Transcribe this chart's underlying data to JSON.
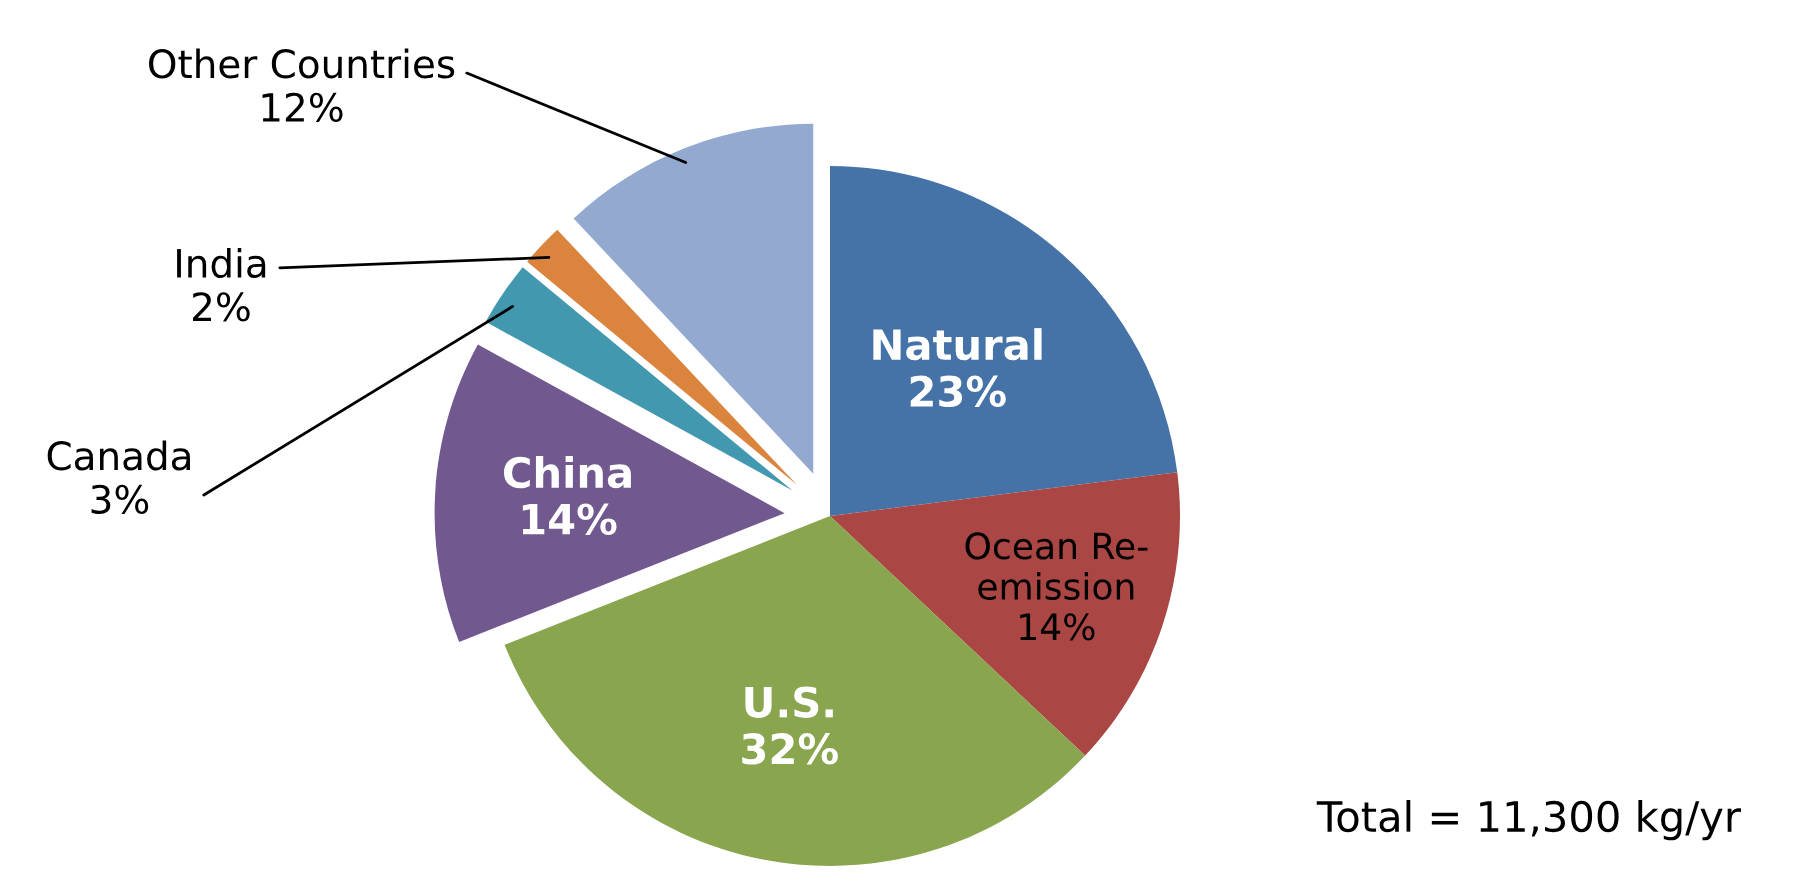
{
  "chart_data": {
    "type": "pie",
    "categories": [
      "Natural",
      "Ocean Re-emission",
      "U.S.",
      "China",
      "Canada",
      "India",
      "Other Countries"
    ],
    "values": [
      23,
      14,
      32,
      14,
      3,
      2,
      12
    ],
    "value_labels": [
      "23%",
      "14%",
      "32%",
      "14%",
      "3%",
      "2%",
      "12%"
    ],
    "colors": [
      "#4572a7",
      "#aa4643",
      "#89a54e",
      "#71588f",
      "#4198af",
      "#db843d",
      "#93a9cf"
    ],
    "annotations": [
      "Total = 11,300 kg/yr"
    ],
    "legend": false
  }
}
